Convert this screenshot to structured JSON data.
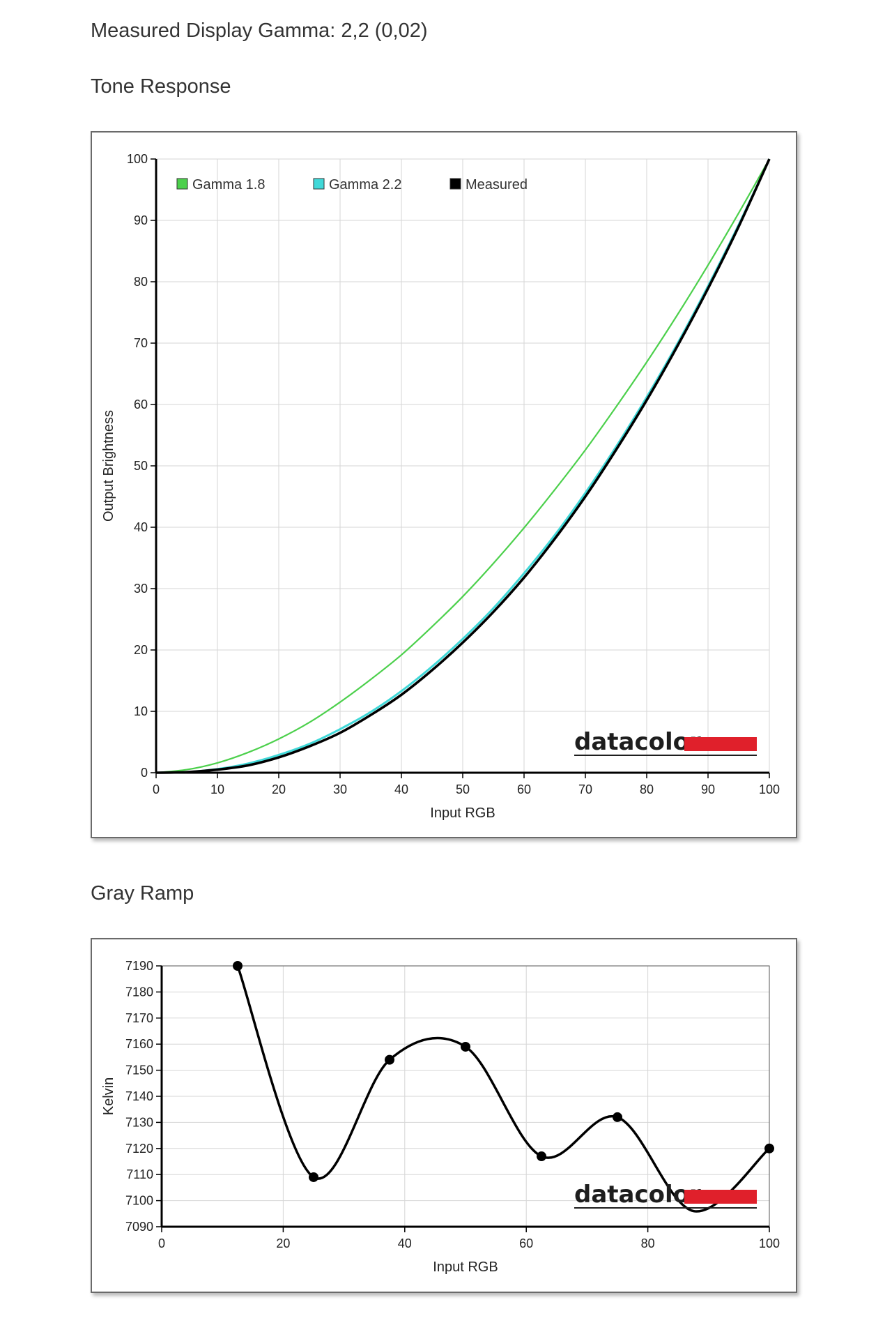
{
  "header": {
    "gamma_summary": "Measured Display Gamma: 2,2 (0,02)",
    "tone_section_title": "Tone Response",
    "gray_section_title": "Gray Ramp"
  },
  "logo": {
    "text": "datacolor",
    "bar_color": "#e0202b"
  },
  "chart_data": [
    {
      "type": "line",
      "title": "Tone Response",
      "xlabel": "Input RGB",
      "ylabel": "Output Brightness",
      "xlim": [
        0,
        100
      ],
      "ylim": [
        0,
        100
      ],
      "xticks": [
        0,
        10,
        20,
        30,
        40,
        50,
        60,
        70,
        80,
        90,
        100
      ],
      "yticks": [
        0,
        10,
        20,
        30,
        40,
        50,
        60,
        70,
        80,
        90,
        100
      ],
      "x_tick_labels": [
        "0",
        "10",
        "20",
        "30",
        "40",
        "50",
        "60",
        "70",
        "80",
        "90",
        "100"
      ],
      "y_tick_labels": [
        "0",
        "10",
        "20",
        "30",
        "40",
        "50",
        "60",
        "70",
        "80",
        "90",
        "100"
      ],
      "grid": true,
      "legend_position": "top",
      "x": [
        0,
        5,
        10,
        15,
        20,
        25,
        30,
        35,
        40,
        45,
        50,
        55,
        60,
        65,
        70,
        75,
        80,
        85,
        90,
        95,
        100
      ],
      "series": [
        {
          "name": "Gamma 1.8",
          "color": "#4cd04c",
          "values": [
            0,
            0.5,
            1.6,
            3.3,
            5.5,
            8.2,
            11.5,
            15.2,
            19.2,
            23.8,
            28.7,
            34.1,
            39.9,
            46.1,
            52.6,
            59.6,
            66.9,
            74.6,
            82.7,
            91.2,
            100
          ]
        },
        {
          "name": "Gamma 2.2",
          "color": "#40d8d8",
          "values": [
            0,
            0.1,
            0.6,
            1.5,
            2.9,
            4.7,
            7.1,
            9.9,
            13.3,
            17.3,
            21.8,
            26.8,
            32.5,
            38.7,
            45.6,
            53.1,
            61.2,
            69.9,
            79.3,
            89.3,
            100
          ]
        },
        {
          "name": "Measured",
          "color": "#000000",
          "values": [
            0,
            0.1,
            0.5,
            1.2,
            2.5,
            4.3,
            6.5,
            9.4,
            12.7,
            16.7,
            21.2,
            26.2,
            31.8,
            38.1,
            45.0,
            52.6,
            60.7,
            69.5,
            78.9,
            89.0,
            100
          ]
        }
      ]
    },
    {
      "type": "line",
      "title": "Gray Ramp",
      "xlabel": "Input RGB",
      "ylabel": "Kelvin",
      "xlim": [
        0,
        100
      ],
      "ylim": [
        7090,
        7190
      ],
      "xticks": [
        0,
        20,
        40,
        60,
        80,
        100
      ],
      "yticks": [
        7090,
        7100,
        7110,
        7120,
        7130,
        7140,
        7150,
        7160,
        7170,
        7180,
        7190
      ],
      "x_tick_labels": [
        "0",
        "20",
        "40",
        "60",
        "80",
        "100"
      ],
      "y_tick_labels": [
        "7090",
        "7100",
        "7110",
        "7120",
        "7130",
        "7140",
        "7150",
        "7160",
        "7170",
        "7180",
        "7190"
      ],
      "grid": true,
      "series": [
        {
          "name": "",
          "color": "#000000",
          "x": [
            12.5,
            25,
            37.5,
            50,
            62.5,
            75,
            87.5,
            100
          ],
          "values": [
            7190,
            7109,
            7154,
            7159,
            7117,
            7132,
            7096,
            7120
          ],
          "markers": [
            true,
            true,
            true,
            true,
            true,
            true,
            false,
            true
          ]
        }
      ]
    }
  ]
}
